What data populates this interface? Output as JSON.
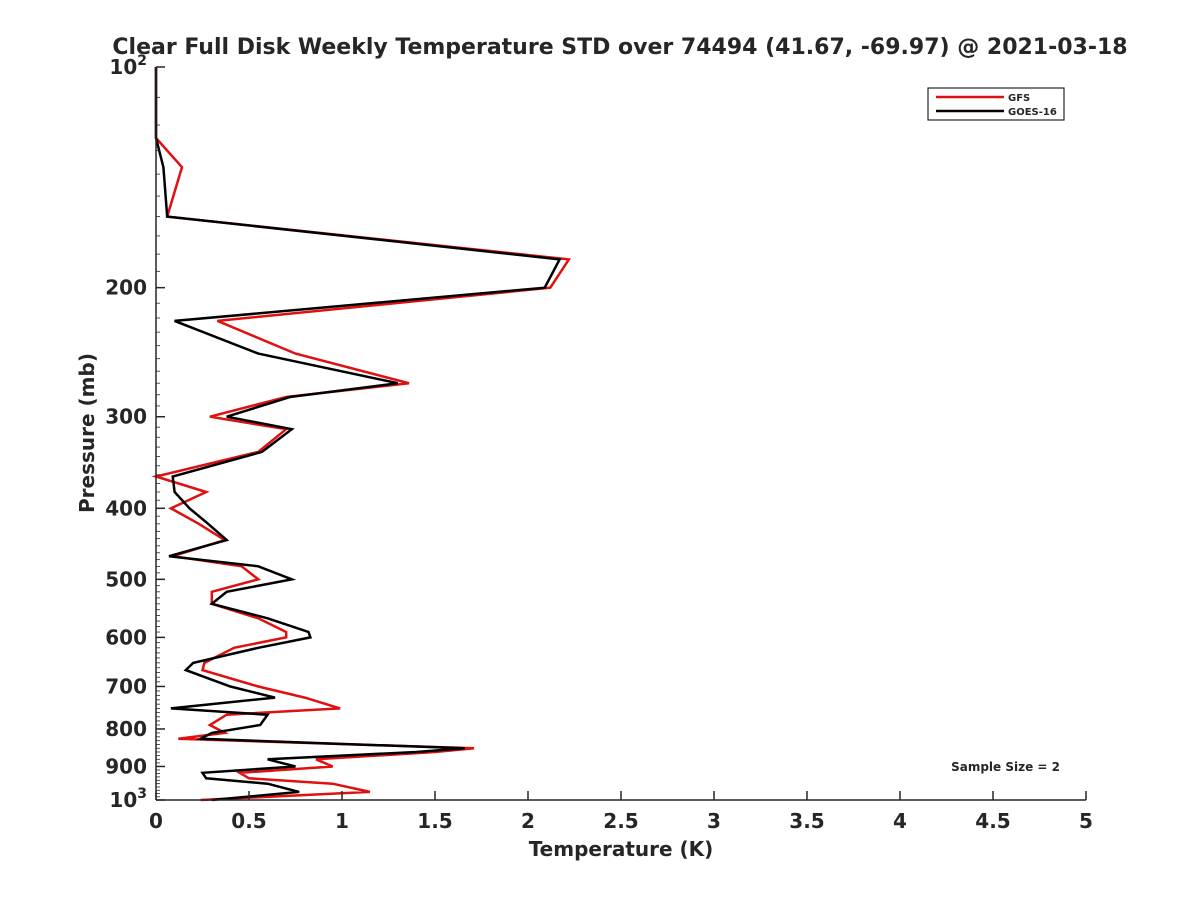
{
  "chart_data": {
    "type": "line",
    "title": "Clear Full Disk Weekly Temperature STD over 74494 (41.67, -69.97) @ 2021-03-18",
    "xlabel": "Temperature (K)",
    "ylabel": "Pressure (mb)",
    "xlim": [
      0,
      5
    ],
    "ylim": [
      100,
      1000
    ],
    "y_scale": "log",
    "y_reversed": true,
    "x_ticks": [
      "0",
      "0.5",
      "1",
      "1.5",
      "2",
      "2.5",
      "3",
      "3.5",
      "4",
      "4.5",
      "5"
    ],
    "y_ticks": [
      {
        "value": 100,
        "base": "10",
        "exp": "2"
      },
      {
        "value": 200,
        "label": "200"
      },
      {
        "value": 300,
        "label": "300"
      },
      {
        "value": 400,
        "label": "400"
      },
      {
        "value": 500,
        "label": "500"
      },
      {
        "value": 600,
        "label": "600"
      },
      {
        "value": 700,
        "label": "700"
      },
      {
        "value": 800,
        "label": "800"
      },
      {
        "value": 900,
        "label": "900"
      },
      {
        "value": 1000,
        "base": "10",
        "exp": "3"
      }
    ],
    "legend_position": "top-right",
    "grid": false,
    "series": [
      {
        "name": "GFS",
        "color": "#e01010",
        "points": [
          [
            0.0,
            100
          ],
          [
            0.0,
            125
          ],
          [
            0.14,
            137
          ],
          [
            0.06,
            160
          ],
          [
            2.22,
            183
          ],
          [
            2.12,
            200
          ],
          [
            0.33,
            222
          ],
          [
            0.75,
            246
          ],
          [
            1.36,
            270
          ],
          [
            0.7,
            282
          ],
          [
            0.29,
            300
          ],
          [
            0.7,
            312
          ],
          [
            0.55,
            335
          ],
          [
            0.0,
            362
          ],
          [
            0.27,
            380
          ],
          [
            0.08,
            400
          ],
          [
            0.23,
            420
          ],
          [
            0.37,
            442
          ],
          [
            0.09,
            465
          ],
          [
            0.46,
            480
          ],
          [
            0.55,
            500
          ],
          [
            0.3,
            520
          ],
          [
            0.3,
            540
          ],
          [
            0.55,
            565
          ],
          [
            0.7,
            590
          ],
          [
            0.7,
            600
          ],
          [
            0.42,
            620
          ],
          [
            0.26,
            650
          ],
          [
            0.25,
            665
          ],
          [
            0.55,
            700
          ],
          [
            0.8,
            725
          ],
          [
            0.99,
            750
          ],
          [
            0.38,
            765
          ],
          [
            0.29,
            790
          ],
          [
            0.37,
            810
          ],
          [
            0.12,
            825
          ],
          [
            1.71,
            850
          ],
          [
            1.5,
            860
          ],
          [
            0.86,
            880
          ],
          [
            0.95,
            900
          ],
          [
            0.45,
            918
          ],
          [
            0.5,
            934
          ],
          [
            0.95,
            950
          ],
          [
            1.15,
            975
          ],
          [
            0.24,
            1000
          ]
        ]
      },
      {
        "name": "GOES-16",
        "color": "#000000",
        "points": [
          [
            0.0,
            100
          ],
          [
            0.0,
            125
          ],
          [
            0.04,
            137
          ],
          [
            0.06,
            160
          ],
          [
            2.17,
            183
          ],
          [
            2.09,
            200
          ],
          [
            0.1,
            222
          ],
          [
            0.55,
            246
          ],
          [
            1.3,
            270
          ],
          [
            0.72,
            282
          ],
          [
            0.38,
            300
          ],
          [
            0.73,
            312
          ],
          [
            0.57,
            335
          ],
          [
            0.09,
            362
          ],
          [
            0.1,
            380
          ],
          [
            0.18,
            400
          ],
          [
            0.28,
            420
          ],
          [
            0.38,
            442
          ],
          [
            0.07,
            465
          ],
          [
            0.55,
            480
          ],
          [
            0.73,
            500
          ],
          [
            0.38,
            520
          ],
          [
            0.3,
            540
          ],
          [
            0.6,
            565
          ],
          [
            0.82,
            590
          ],
          [
            0.83,
            600
          ],
          [
            0.55,
            620
          ],
          [
            0.2,
            650
          ],
          [
            0.16,
            665
          ],
          [
            0.4,
            700
          ],
          [
            0.64,
            725
          ],
          [
            0.08,
            750
          ],
          [
            0.6,
            765
          ],
          [
            0.56,
            790
          ],
          [
            0.3,
            810
          ],
          [
            0.24,
            825
          ],
          [
            1.66,
            850
          ],
          [
            1.4,
            860
          ],
          [
            0.6,
            880
          ],
          [
            0.75,
            900
          ],
          [
            0.25,
            918
          ],
          [
            0.27,
            934
          ],
          [
            0.6,
            950
          ],
          [
            0.77,
            975
          ],
          [
            0.3,
            1000
          ]
        ]
      }
    ],
    "annotation": "Sample Size = 2"
  }
}
